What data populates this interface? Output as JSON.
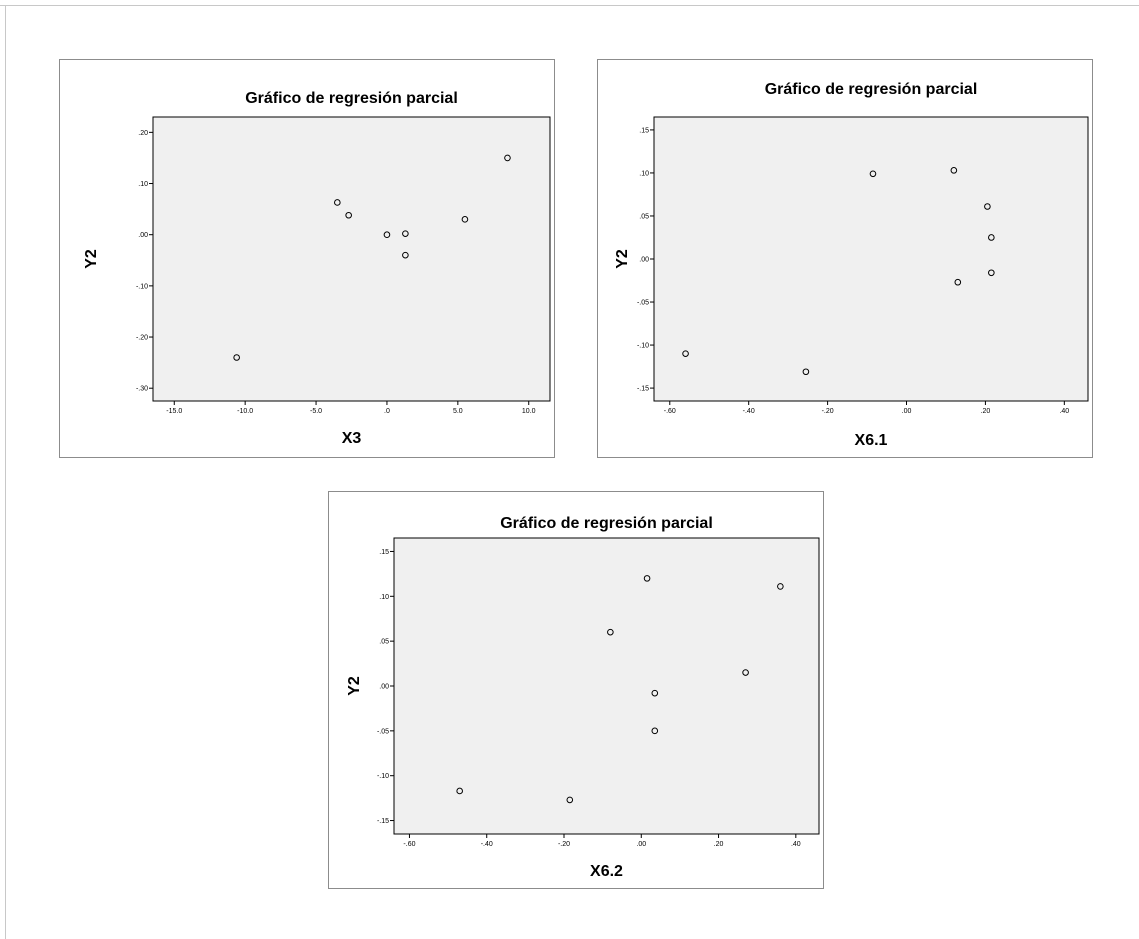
{
  "colors": {
    "plot_background": "#f0f0f0",
    "axis_line": "#000000",
    "marker_stroke": "#000000",
    "panel_border": "#8c8c8c"
  },
  "chart_data": [
    {
      "type": "scatter",
      "title": "Gráfico de regresión parcial",
      "xlabel": "X3",
      "ylabel": "Y2",
      "xlim": [
        -16.5,
        11.5
      ],
      "ylim": [
        -0.325,
        0.23
      ],
      "xticks": [
        -15.0,
        -10.0,
        -5.0,
        0.0,
        5.0,
        10.0
      ],
      "xtick_labels": [
        "-15.0",
        "-10.0",
        "-5.0",
        ".0",
        "5.0",
        "10.0"
      ],
      "yticks": [
        0.2,
        0.1,
        0.0,
        -0.1,
        -0.2,
        -0.3
      ],
      "ytick_labels": [
        ".20",
        ".10",
        ".00",
        "-.10",
        "-.20",
        "-.30"
      ],
      "grid": false,
      "marker": "open-circle",
      "points": [
        {
          "x": -10.6,
          "y": -0.24
        },
        {
          "x": -3.5,
          "y": 0.063
        },
        {
          "x": -2.7,
          "y": 0.038
        },
        {
          "x": 0.0,
          "y": 0.0
        },
        {
          "x": 1.3,
          "y": 0.002
        },
        {
          "x": 1.3,
          "y": -0.04
        },
        {
          "x": 5.5,
          "y": 0.03
        },
        {
          "x": 8.5,
          "y": 0.15
        }
      ]
    },
    {
      "type": "scatter",
      "title": "Gráfico de regresión parcial",
      "xlabel": "X6.1",
      "ylabel": "Y2",
      "xlim": [
        -0.64,
        0.46
      ],
      "ylim": [
        -0.165,
        0.165
      ],
      "xticks": [
        -0.6,
        -0.4,
        -0.2,
        0.0,
        0.2,
        0.4
      ],
      "xtick_labels": [
        "-.60",
        "-.40",
        "-.20",
        ".00",
        ".20",
        ".40"
      ],
      "yticks": [
        0.15,
        0.1,
        0.05,
        0.0,
        -0.05,
        -0.1,
        -0.15
      ],
      "ytick_labels": [
        ".15",
        ".10",
        ".05",
        ".00",
        "-.05",
        "-.10",
        "-.15"
      ],
      "grid": false,
      "marker": "open-circle",
      "points": [
        {
          "x": -0.56,
          "y": -0.11
        },
        {
          "x": -0.255,
          "y": -0.131
        },
        {
          "x": -0.085,
          "y": 0.099
        },
        {
          "x": 0.12,
          "y": 0.103
        },
        {
          "x": 0.13,
          "y": -0.027
        },
        {
          "x": 0.205,
          "y": 0.061
        },
        {
          "x": 0.215,
          "y": 0.025
        },
        {
          "x": 0.215,
          "y": -0.016
        }
      ]
    },
    {
      "type": "scatter",
      "title": "Gráfico de regresión parcial",
      "xlabel": "X6.2",
      "ylabel": "Y2",
      "xlim": [
        -0.64,
        0.46
      ],
      "ylim": [
        -0.165,
        0.165
      ],
      "xticks": [
        -0.6,
        -0.4,
        -0.2,
        0.0,
        0.2,
        0.4
      ],
      "xtick_labels": [
        "-.60",
        "-.40",
        "-.20",
        ".00",
        ".20",
        ".40"
      ],
      "yticks": [
        0.15,
        0.1,
        0.05,
        0.0,
        -0.05,
        -0.1,
        -0.15
      ],
      "ytick_labels": [
        ".15",
        ".10",
        ".05",
        ".00",
        "-.05",
        "-.10",
        "-.15"
      ],
      "grid": false,
      "marker": "open-circle",
      "points": [
        {
          "x": -0.47,
          "y": -0.117
        },
        {
          "x": -0.185,
          "y": -0.127
        },
        {
          "x": -0.08,
          "y": 0.06
        },
        {
          "x": 0.015,
          "y": 0.12
        },
        {
          "x": 0.035,
          "y": -0.008
        },
        {
          "x": 0.035,
          "y": -0.05
        },
        {
          "x": 0.27,
          "y": 0.015
        },
        {
          "x": 0.36,
          "y": 0.111
        }
      ]
    }
  ]
}
